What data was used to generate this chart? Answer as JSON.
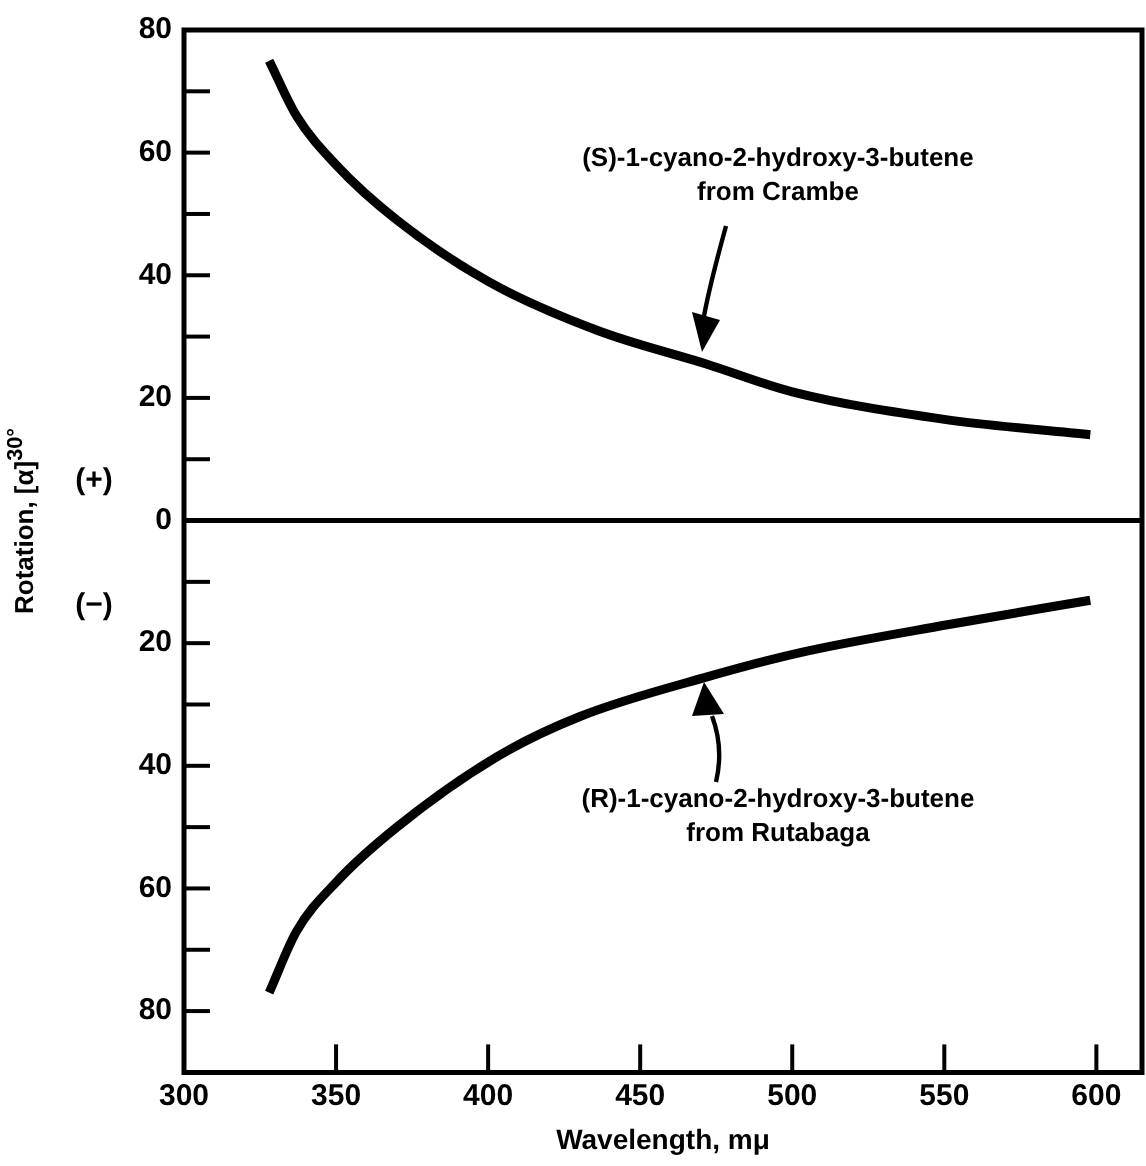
{
  "chart_data": {
    "type": "line",
    "xlabel": "Wavelength, mμ",
    "ylabel": "Rotation, [α]$^{30°}$",
    "series": [
      {
        "color": "#000000",
        "x": [
          328,
          337,
          350,
          370,
          400,
          436,
          472,
          500,
          550,
          598
        ],
        "values": [
          75,
          66,
          58,
          49,
          39,
          31,
          25.5,
          21,
          16.5,
          14
        ]
      },
      {
        "color": "#000000",
        "x": [
          328,
          337,
          350,
          370,
          403,
          430,
          472,
          503,
          551,
          598
        ],
        "values": [
          -77,
          -67,
          -59,
          -50,
          -38.5,
          -32,
          -25.5,
          -21.5,
          -17,
          -13
        ]
      }
    ],
    "xlim": [
      300,
      615
    ],
    "xticks": [
      300,
      350,
      400,
      450,
      500,
      550,
      600
    ],
    "ylim": [
      -90,
      80
    ],
    "yticks": [
      {
        "value": 80,
        "label": "80"
      },
      {
        "value": 70,
        "label": null
      },
      {
        "value": 60,
        "label": "60"
      },
      {
        "value": 50,
        "label": null
      },
      {
        "value": 40,
        "label": "40"
      },
      {
        "value": 30,
        "label": null
      },
      {
        "value": 20,
        "label": "20"
      },
      {
        "value": 10,
        "label": null
      },
      {
        "value": 0,
        "label": "0"
      },
      {
        "value": -10,
        "label": null
      },
      {
        "value": -20,
        "label": "20"
      },
      {
        "value": -30,
        "label": null
      },
      {
        "value": -40,
        "label": "40"
      },
      {
        "value": -50,
        "label": null
      },
      {
        "value": -60,
        "label": "60"
      },
      {
        "value": -70,
        "label": null
      },
      {
        "value": -80,
        "label": "80"
      }
    ],
    "ref_lines": [
      {
        "axis": "y",
        "value": 0,
        "color": "#000000"
      }
    ],
    "annotations": [
      "(S)-1-cyano-2-hydroxy-3-butene\nfrom Crambe",
      "(R)-1-cyano-2-hydroxy-3-butene\nfrom Rutabaga",
      "(+)",
      "(−)"
    ],
    "grid": false,
    "legend": false,
    "marker": "none",
    "line_style": "solid"
  }
}
